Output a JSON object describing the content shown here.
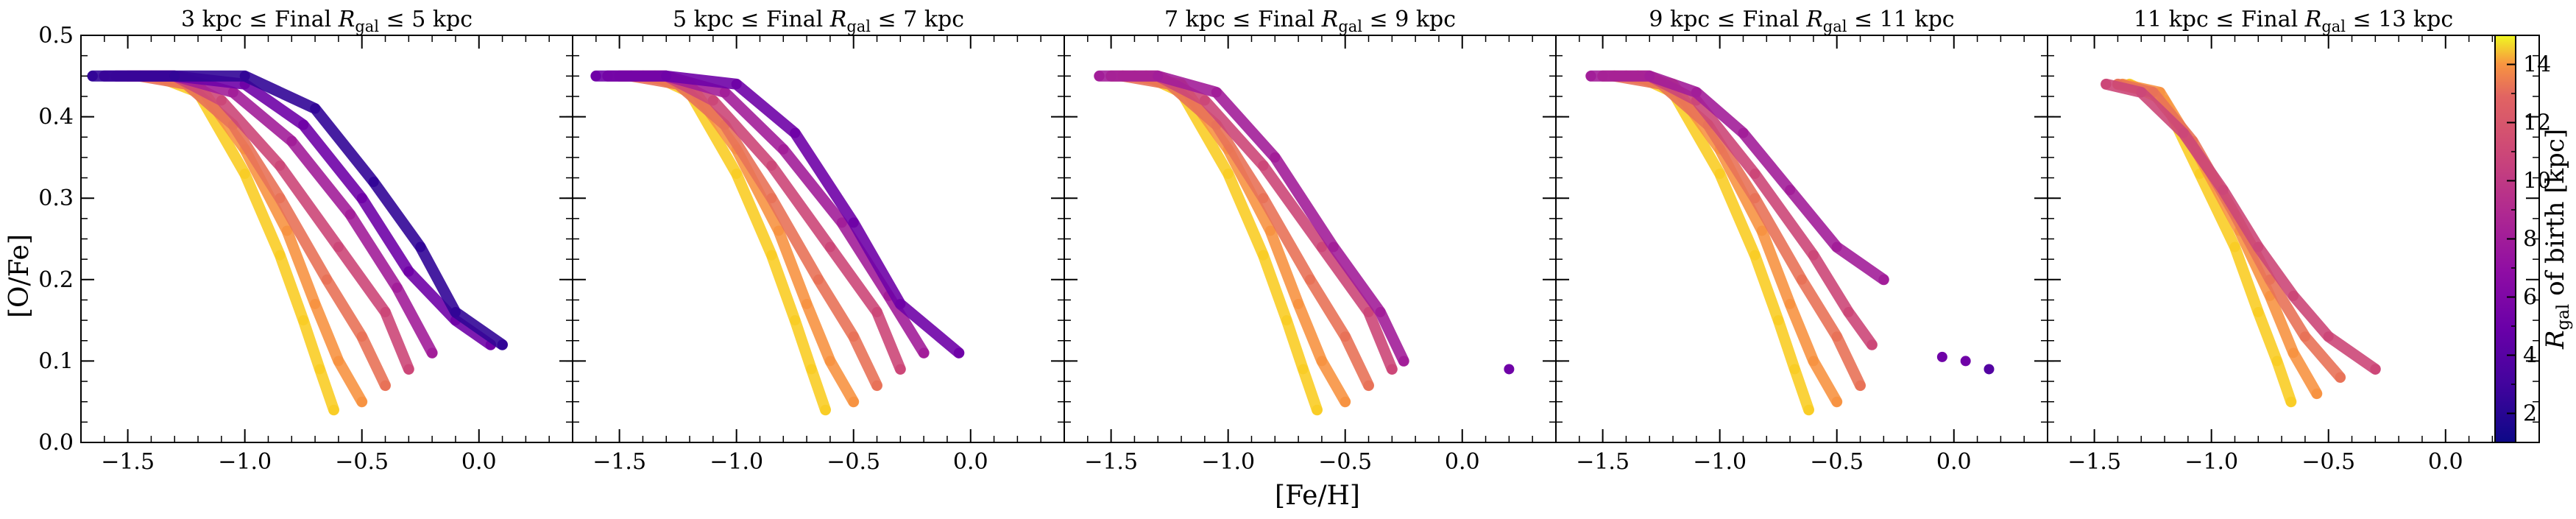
{
  "chart_data": {
    "type": "scatter",
    "xlabel": "[Fe/H]",
    "ylabel": "[O/Fe]",
    "xlim": [
      -1.7,
      0.4
    ],
    "ylim": [
      0.0,
      0.5
    ],
    "xticks": [
      -1.5,
      -1.0,
      -0.5,
      0.0
    ],
    "xtick_labels": [
      "−1.5",
      "−1.0",
      "−0.5",
      "0.0"
    ],
    "yticks": [
      0.0,
      0.1,
      0.2,
      0.3,
      0.4,
      0.5
    ],
    "ytick_labels": [
      "0.0",
      "0.1",
      "0.2",
      "0.3",
      "0.4",
      "0.5"
    ],
    "grid": false,
    "colorbar": {
      "label_main": "R",
      "label_sub": "gal",
      "label_rest": " of birth [kpc]",
      "colormap": "plasma",
      "range": [
        1,
        15
      ],
      "ticks": [
        2,
        4,
        6,
        8,
        10,
        12,
        14
      ],
      "tick_labels": [
        "2",
        "4",
        "6",
        "8",
        "10",
        "12",
        "14"
      ]
    },
    "panels": [
      {
        "title_pre": "3 kpc ≤ Final ",
        "title_r": "R",
        "title_sub": "gal",
        "title_post": " ≤ 5 kpc",
        "series": [
          {
            "rbirth": 14,
            "x": [
              -1.38,
              -1.2,
              -1.0,
              -0.85,
              -0.75,
              -0.68,
              -0.62
            ],
            "y": [
              0.45,
              0.43,
              0.33,
              0.23,
              0.15,
              0.09,
              0.04
            ]
          },
          {
            "rbirth": 12,
            "x": [
              -1.4,
              -1.2,
              -1.0,
              -0.82,
              -0.7,
              -0.6,
              -0.5
            ],
            "y": [
              0.45,
              0.44,
              0.36,
              0.26,
              0.17,
              0.1,
              0.05
            ]
          },
          {
            "rbirth": 10,
            "x": [
              -1.45,
              -1.25,
              -1.05,
              -0.85,
              -0.65,
              -0.5,
              -0.4
            ],
            "y": [
              0.45,
              0.44,
              0.39,
              0.3,
              0.2,
              0.13,
              0.07
            ]
          },
          {
            "rbirth": 8,
            "x": [
              -1.5,
              -1.3,
              -1.1,
              -0.85,
              -0.6,
              -0.4,
              -0.3
            ],
            "y": [
              0.45,
              0.45,
              0.42,
              0.34,
              0.24,
              0.16,
              0.09
            ]
          },
          {
            "rbirth": 6,
            "x": [
              -1.55,
              -1.3,
              -1.05,
              -0.8,
              -0.55,
              -0.35,
              -0.2
            ],
            "y": [
              0.45,
              0.45,
              0.43,
              0.37,
              0.28,
              0.19,
              0.11
            ]
          },
          {
            "rbirth": 4,
            "x": [
              -1.6,
              -1.3,
              -1.0,
              -0.75,
              -0.5,
              -0.3,
              -0.1,
              0.05
            ],
            "y": [
              0.45,
              0.45,
              0.44,
              0.39,
              0.3,
              0.21,
              0.15,
              0.12
            ]
          },
          {
            "rbirth": 2,
            "x": [
              -1.65,
              -1.3,
              -1.0,
              -0.7,
              -0.45,
              -0.25,
              -0.1,
              0.1
            ],
            "y": [
              0.45,
              0.45,
              0.45,
              0.41,
              0.32,
              0.24,
              0.16,
              0.12
            ]
          }
        ]
      },
      {
        "title_pre": "5 kpc ≤ Final ",
        "title_r": "R",
        "title_sub": "gal",
        "title_post": " ≤ 7 kpc",
        "series": [
          {
            "rbirth": 14,
            "x": [
              -1.35,
              -1.2,
              -1.0,
              -0.85,
              -0.75,
              -0.68,
              -0.62
            ],
            "y": [
              0.45,
              0.43,
              0.33,
              0.23,
              0.15,
              0.09,
              0.04
            ]
          },
          {
            "rbirth": 12,
            "x": [
              -1.4,
              -1.2,
              -1.0,
              -0.82,
              -0.7,
              -0.6,
              -0.5
            ],
            "y": [
              0.45,
              0.44,
              0.36,
              0.26,
              0.17,
              0.1,
              0.05
            ]
          },
          {
            "rbirth": 10,
            "x": [
              -1.45,
              -1.25,
              -1.05,
              -0.85,
              -0.65,
              -0.5,
              -0.4
            ],
            "y": [
              0.45,
              0.44,
              0.39,
              0.3,
              0.2,
              0.13,
              0.07
            ]
          },
          {
            "rbirth": 8,
            "x": [
              -1.5,
              -1.3,
              -1.1,
              -0.85,
              -0.6,
              -0.4,
              -0.3
            ],
            "y": [
              0.45,
              0.45,
              0.42,
              0.34,
              0.24,
              0.16,
              0.09
            ]
          },
          {
            "rbirth": 6,
            "x": [
              -1.55,
              -1.3,
              -1.05,
              -0.8,
              -0.55,
              -0.35,
              -0.2
            ],
            "y": [
              0.45,
              0.45,
              0.43,
              0.36,
              0.27,
              0.18,
              0.11
            ]
          },
          {
            "rbirth": 4,
            "x": [
              -1.6,
              -1.3,
              -1.0,
              -0.75,
              -0.5,
              -0.3,
              -0.05
            ],
            "y": [
              0.45,
              0.45,
              0.44,
              0.38,
              0.27,
              0.17,
              0.11
            ]
          }
        ]
      },
      {
        "title_pre": "7 kpc ≤ Final ",
        "title_r": "R",
        "title_sub": "gal",
        "title_post": " ≤ 9 kpc",
        "series": [
          {
            "rbirth": 14,
            "x": [
              -1.35,
              -1.2,
              -1.0,
              -0.85,
              -0.75,
              -0.68,
              -0.62
            ],
            "y": [
              0.45,
              0.43,
              0.33,
              0.23,
              0.15,
              0.09,
              0.04
            ]
          },
          {
            "rbirth": 12,
            "x": [
              -1.4,
              -1.2,
              -1.0,
              -0.82,
              -0.7,
              -0.6,
              -0.5
            ],
            "y": [
              0.45,
              0.44,
              0.36,
              0.26,
              0.17,
              0.1,
              0.05
            ]
          },
          {
            "rbirth": 10,
            "x": [
              -1.45,
              -1.25,
              -1.05,
              -0.85,
              -0.65,
              -0.5,
              -0.4
            ],
            "y": [
              0.45,
              0.44,
              0.39,
              0.3,
              0.2,
              0.13,
              0.07
            ]
          },
          {
            "rbirth": 8,
            "x": [
              -1.5,
              -1.3,
              -1.1,
              -0.85,
              -0.6,
              -0.4,
              -0.3
            ],
            "y": [
              0.45,
              0.45,
              0.42,
              0.34,
              0.24,
              0.16,
              0.09
            ]
          },
          {
            "rbirth": 6,
            "x": [
              -1.55,
              -1.3,
              -1.05,
              -0.8,
              -0.55,
              -0.35,
              -0.25
            ],
            "y": [
              0.45,
              0.45,
              0.43,
              0.35,
              0.24,
              0.16,
              0.1
            ]
          }
        ]
      },
      {
        "title_pre": "9 kpc ≤ Final ",
        "title_r": "R",
        "title_sub": "gal",
        "title_post": " ≤ 11 kpc",
        "series": [
          {
            "rbirth": 14,
            "x": [
              -1.35,
              -1.2,
              -1.0,
              -0.85,
              -0.75,
              -0.68,
              -0.62
            ],
            "y": [
              0.45,
              0.43,
              0.33,
              0.23,
              0.15,
              0.09,
              0.04
            ]
          },
          {
            "rbirth": 12,
            "x": [
              -1.4,
              -1.2,
              -1.0,
              -0.82,
              -0.7,
              -0.6,
              -0.5
            ],
            "y": [
              0.45,
              0.44,
              0.36,
              0.26,
              0.17,
              0.1,
              0.05
            ]
          },
          {
            "rbirth": 10,
            "x": [
              -1.45,
              -1.25,
              -1.05,
              -0.85,
              -0.65,
              -0.5,
              -0.4
            ],
            "y": [
              0.45,
              0.44,
              0.39,
              0.3,
              0.2,
              0.13,
              0.07
            ]
          },
          {
            "rbirth": 8,
            "x": [
              -1.5,
              -1.3,
              -1.1,
              -0.85,
              -0.6,
              -0.45,
              -0.35
            ],
            "y": [
              0.45,
              0.45,
              0.42,
              0.33,
              0.23,
              0.16,
              0.12
            ]
          },
          {
            "rbirth": 6,
            "x": [
              -1.55,
              -1.3,
              -1.1,
              -0.9,
              -0.7,
              -0.5,
              -0.3
            ],
            "y": [
              0.45,
              0.45,
              0.43,
              0.38,
              0.31,
              0.24,
              0.2
            ]
          }
        ]
      },
      {
        "title_pre": "11 kpc ≤ Final ",
        "title_r": "R",
        "title_sub": "gal",
        "title_post": " ≤ 13 kpc",
        "series": [
          {
            "rbirth": 14,
            "x": [
              -1.35,
              -1.2,
              -1.05,
              -0.9,
              -0.8,
              -0.72,
              -0.66
            ],
            "y": [
              0.44,
              0.42,
              0.33,
              0.24,
              0.16,
              0.1,
              0.05
            ]
          },
          {
            "rbirth": 12,
            "x": [
              -1.38,
              -1.22,
              -1.05,
              -0.88,
              -0.75,
              -0.65,
              -0.55
            ],
            "y": [
              0.44,
              0.43,
              0.35,
              0.26,
              0.18,
              0.11,
              0.06
            ]
          },
          {
            "rbirth": 10,
            "x": [
              -1.4,
              -1.25,
              -1.08,
              -0.9,
              -0.75,
              -0.6,
              -0.45
            ],
            "y": [
              0.44,
              0.43,
              0.37,
              0.28,
              0.2,
              0.13,
              0.08
            ]
          },
          {
            "rbirth": 8,
            "x": [
              -1.45,
              -1.3,
              -1.12,
              -0.95,
              -0.8,
              -0.65,
              -0.5,
              -0.3
            ],
            "y": [
              0.44,
              0.43,
              0.38,
              0.31,
              0.24,
              0.18,
              0.13,
              0.09
            ]
          }
        ]
      }
    ],
    "outliers": [
      {
        "panel": 2,
        "x": 0.2,
        "y": 0.09,
        "rbirth": 4
      },
      {
        "panel": 3,
        "x": -0.05,
        "y": 0.105,
        "rbirth": 4
      },
      {
        "panel": 3,
        "x": 0.05,
        "y": 0.1,
        "rbirth": 4
      },
      {
        "panel": 3,
        "x": 0.15,
        "y": 0.09,
        "rbirth": 3
      }
    ]
  }
}
